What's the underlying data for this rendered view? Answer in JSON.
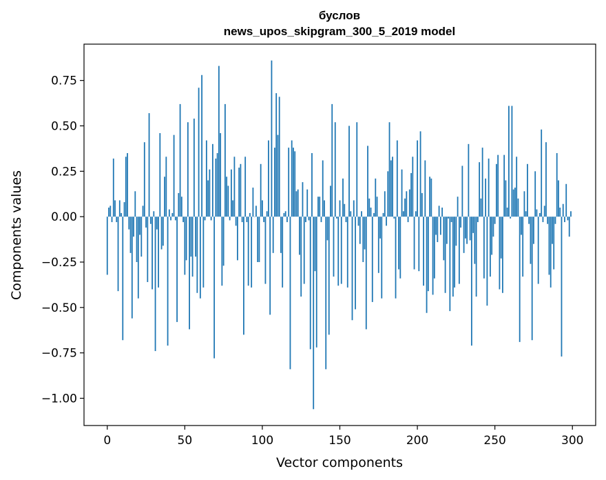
{
  "chart_data": {
    "type": "bar",
    "title_lines": [
      "буслов",
      "news_upos_skipgram_300_5_2019 model"
    ],
    "xlabel": "Vector components",
    "ylabel": "Components values",
    "xlim": [
      -15,
      315
    ],
    "ylim": [
      -1.15,
      0.95
    ],
    "xticks": [
      0,
      50,
      100,
      150,
      200,
      250,
      300
    ],
    "yticks": [
      -1.0,
      -0.75,
      -0.5,
      -0.25,
      0.0,
      0.25,
      0.5,
      0.75
    ],
    "ytick_labels": [
      "−1.00",
      "−0.75",
      "−0.50",
      "−0.25",
      "0.00",
      "0.25",
      "0.50",
      "0.75"
    ],
    "bar_color": "#1f77b4",
    "grid": false,
    "series": [
      {
        "values": [
          -0.32,
          0.05,
          0.06,
          -0.03,
          0.32,
          0.09,
          -0.03,
          -0.41,
          0.09,
          0.02,
          -0.68,
          0.08,
          0.33,
          0.35,
          -0.07,
          -0.2,
          -0.56,
          -0.11,
          0.14,
          -0.25,
          -0.45,
          -0.1,
          -0.22,
          0.06,
          0.41,
          -0.06,
          -0.36,
          0.57,
          -0.04,
          -0.4,
          0.03,
          -0.74,
          -0.07,
          -0.39,
          0.46,
          -0.18,
          -0.16,
          0.22,
          0.33,
          -0.71,
          0.04,
          -0.02,
          0.02,
          0.45,
          -0.02,
          -0.58,
          0.13,
          0.62,
          0.11,
          -0.03,
          -0.32,
          -0.24,
          0.52,
          -0.62,
          -0.22,
          -0.33,
          0.54,
          -0.22,
          -0.42,
          0.71,
          -0.45,
          0.78,
          -0.39,
          -0.02,
          0.42,
          0.2,
          0.26,
          -0.02,
          0.4,
          -0.78,
          0.32,
          0.35,
          0.83,
          0.46,
          -0.38,
          -0.27,
          0.62,
          0.22,
          0.17,
          -0.02,
          0.26,
          0.09,
          0.33,
          -0.05,
          -0.24,
          0.27,
          0.29,
          -0.03,
          -0.65,
          0.33,
          -0.03,
          -0.38,
          0.02,
          -0.39,
          0.16,
          0.0,
          0.06,
          -0.25,
          -0.25,
          0.29,
          0.09,
          -0.03,
          -0.37,
          0.03,
          0.42,
          -0.54,
          0.86,
          -0.2,
          0.38,
          0.68,
          0.45,
          0.66,
          -0.2,
          -0.39,
          0.02,
          0.03,
          -0.03,
          0.38,
          -0.84,
          0.42,
          0.38,
          0.36,
          0.14,
          0.15,
          -0.21,
          -0.44,
          0.19,
          -0.37,
          -0.03,
          0.15,
          -0.02,
          -0.73,
          0.35,
          -1.06,
          -0.3,
          -0.72,
          0.11,
          0.11,
          -0.03,
          0.31,
          0.09,
          -0.84,
          -0.13,
          -0.65,
          0.17,
          0.62,
          -0.33,
          0.52,
          -0.01,
          -0.38,
          0.09,
          -0.37,
          0.21,
          0.07,
          -0.03,
          -0.39,
          0.5,
          0.03,
          -0.57,
          0.09,
          -0.51,
          0.52,
          -0.05,
          -0.15,
          0.03,
          -0.25,
          -0.18,
          -0.62,
          0.39,
          0.1,
          0.05,
          -0.47,
          0.02,
          0.21,
          0.11,
          -0.31,
          -0.12,
          -0.45,
          0.02,
          0.14,
          -0.05,
          0.25,
          0.52,
          0.31,
          0.33,
          -0.01,
          -0.45,
          0.42,
          -0.29,
          -0.34,
          0.26,
          0.03,
          0.1,
          0.14,
          -0.03,
          0.15,
          0.24,
          0.33,
          -0.29,
          0.03,
          0.42,
          -0.3,
          0.47,
          0.13,
          -0.38,
          0.31,
          -0.53,
          -0.41,
          0.22,
          0.21,
          -0.43,
          -0.34,
          -0.1,
          -0.14,
          0.06,
          -0.1,
          0.05,
          -0.24,
          -0.42,
          -0.15,
          -0.01,
          -0.52,
          -0.03,
          -0.44,
          -0.39,
          -0.16,
          0.11,
          -0.37,
          -0.06,
          0.28,
          -0.2,
          -0.12,
          -0.15,
          0.4,
          -0.13,
          -0.71,
          -0.09,
          -0.26,
          -0.44,
          -0.03,
          0.3,
          0.1,
          0.38,
          -0.34,
          0.21,
          -0.49,
          0.32,
          -0.33,
          -0.21,
          -0.11,
          -0.04,
          0.29,
          0.34,
          -0.4,
          -0.23,
          -0.42,
          0.34,
          0.2,
          0.05,
          0.61,
          -0.01,
          0.61,
          0.15,
          0.16,
          0.33,
          0.1,
          -0.69,
          -0.1,
          -0.33,
          0.14,
          0.03,
          0.29,
          -0.04,
          -0.26,
          -0.68,
          -0.15,
          0.25,
          0.04,
          -0.37,
          0.02,
          0.48,
          -0.03,
          0.06,
          0.41,
          -0.04,
          -0.32,
          -0.39,
          -0.15,
          -0.29,
          -0.04,
          0.35,
          0.2,
          0.05,
          -0.77,
          0.07,
          -0.03,
          0.18,
          -0.02,
          -0.11,
          0.03
        ]
      }
    ]
  }
}
